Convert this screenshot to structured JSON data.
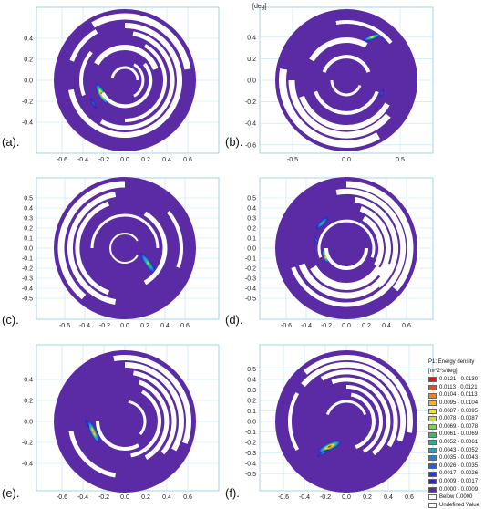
{
  "chart_data": [
    {
      "panel": "(a).",
      "type": "heatmap",
      "x_ticks": [
        "-0.6",
        "-0.4",
        "-0.2",
        "0.0",
        "0.2",
        "0.4",
        "0.6"
      ],
      "y_ticks": [
        "0.4",
        "0.2",
        "0.0",
        "-0.2",
        "-0.4"
      ],
      "peaks": [
        {
          "x": -0.22,
          "y": -0.13,
          "value": 0.0125,
          "angle": -60,
          "len": 0.12,
          "wid": 0.035
        },
        {
          "x": -0.3,
          "y": -0.22,
          "value": 0.003,
          "angle": -60,
          "len": 0.08,
          "wid": 0.025
        }
      ]
    },
    {
      "panel": "(b).",
      "type": "heatmap",
      "unit_label": "[deg]",
      "x_ticks": [
        "-0.5",
        "0.0",
        "0.5"
      ],
      "y_ticks": [
        "0.4",
        "0.2",
        "0.0",
        "-0.2",
        "-0.4",
        "-0.6"
      ],
      "peaks": [
        {
          "x": 0.24,
          "y": 0.4,
          "value": 0.009,
          "angle": 20,
          "len": 0.1,
          "wid": 0.025
        },
        {
          "x": 0.33,
          "y": -0.12,
          "value": 0.003,
          "angle": 70,
          "len": 0.06,
          "wid": 0.02
        }
      ]
    },
    {
      "panel": "(c).",
      "type": "heatmap",
      "x_ticks": [
        "-0.6",
        "-0.4",
        "-0.2",
        "0.0",
        "0.2",
        "0.4",
        "0.6"
      ],
      "y_ticks": [
        "0.5",
        "0.4",
        "0.3",
        "0.2",
        "0.1",
        "0.0",
        "-0.1",
        "-0.2",
        "-0.3",
        "-0.4",
        "-0.5"
      ],
      "peaks": [
        {
          "x": 0.23,
          "y": -0.15,
          "value": 0.008,
          "angle": -55,
          "len": 0.14,
          "wid": 0.035
        },
        {
          "x": 0.37,
          "y": 0.05,
          "value": 0.002,
          "angle": -80,
          "len": 0.12,
          "wid": 0.02
        }
      ]
    },
    {
      "panel": "(d).",
      "type": "heatmap",
      "x_ticks": [
        "-0.6",
        "-0.4",
        "-0.2",
        "0.0",
        "0.2",
        "0.4",
        "0.6"
      ],
      "y_ticks": [
        "0.5",
        "0.4",
        "0.3",
        "0.2",
        "0.1",
        "0.0",
        "-0.1",
        "-0.2",
        "-0.3",
        "-0.4",
        "-0.5"
      ],
      "peaks": [
        {
          "x": -0.21,
          "y": -0.08,
          "value": 0.011,
          "angle": -70,
          "len": 0.08,
          "wid": 0.025
        },
        {
          "x": -0.24,
          "y": 0.25,
          "value": 0.006,
          "angle": 45,
          "len": 0.1,
          "wid": 0.03
        },
        {
          "x": -0.3,
          "y": 0.08,
          "value": 0.003,
          "angle": -60,
          "len": 0.08,
          "wid": 0.02
        }
      ]
    },
    {
      "panel": "(e).",
      "type": "heatmap",
      "x_ticks": [
        "-0.6",
        "-0.4",
        "-0.2",
        "0.0",
        "0.2",
        "0.4",
        "0.6"
      ],
      "y_ticks": [
        "0.4",
        "0.2",
        "0.0",
        "-0.2",
        "-0.4"
      ],
      "peaks": [
        {
          "x": -0.3,
          "y": -0.1,
          "value": 0.011,
          "angle": -65,
          "len": 0.13,
          "wid": 0.03
        },
        {
          "x": -0.36,
          "y": -0.02,
          "value": 0.002,
          "angle": -65,
          "len": 0.08,
          "wid": 0.02
        }
      ]
    },
    {
      "panel": "(f).",
      "type": "heatmap",
      "x_ticks": [
        "-0.6",
        "-0.4",
        "-0.2",
        "0.0",
        "0.2",
        "0.4",
        "0.6"
      ],
      "y_ticks": [
        "0.5",
        "0.4",
        "0.3",
        "0.2",
        "0.1",
        "0.0",
        "-0.1",
        "-0.2",
        "-0.3",
        "-0.4",
        "-0.5"
      ],
      "peaks": [
        {
          "x": -0.16,
          "y": -0.24,
          "value": 0.0125,
          "angle": 25,
          "len": 0.13,
          "wid": 0.035
        },
        {
          "x": -0.22,
          "y": -0.3,
          "value": 0.004,
          "angle": 30,
          "len": 0.08,
          "wid": 0.02
        }
      ]
    }
  ],
  "legend": {
    "title_line1": "P1: Energy density",
    "title_line2": "[m^2*s/deg]",
    "entries": [
      {
        "label": "0.0121 - 0.0130",
        "color": "#e8141c"
      },
      {
        "label": "0.0113 - 0.0121",
        "color": "#f04a1c"
      },
      {
        "label": "0.0104 - 0.0113",
        "color": "#f5821f"
      },
      {
        "label": "0.0095 - 0.0104",
        "color": "#f9b11f"
      },
      {
        "label": "0.0087 - 0.0095",
        "color": "#f7e21e"
      },
      {
        "label": "0.0078 - 0.0087",
        "color": "#c9e324"
      },
      {
        "label": "0.0069 - 0.0078",
        "color": "#7ed23a"
      },
      {
        "label": "0.0061 - 0.0069",
        "color": "#37c05a"
      },
      {
        "label": "0.0052 - 0.0061",
        "color": "#1fb394"
      },
      {
        "label": "0.0043 - 0.0052",
        "color": "#1ca6c3"
      },
      {
        "label": "0.0035 - 0.0043",
        "color": "#1f86d6"
      },
      {
        "label": "0.0026 - 0.0035",
        "color": "#2361d4"
      },
      {
        "label": "0.0017 - 0.0026",
        "color": "#2a3fc9"
      },
      {
        "label": "0.0009 - 0.0017",
        "color": "#3524b8"
      },
      {
        "label": "0.0000 - 0.0009",
        "color": "#5b2ba6"
      },
      {
        "label": "Below 0.0000",
        "color": "#ffffff"
      },
      {
        "label": "Undefined Value",
        "color": "#ffffff"
      }
    ]
  },
  "colors": {
    "background_disk": "#5b2ba6",
    "grid": "#bfe3f2",
    "gap": "#ffffff"
  }
}
